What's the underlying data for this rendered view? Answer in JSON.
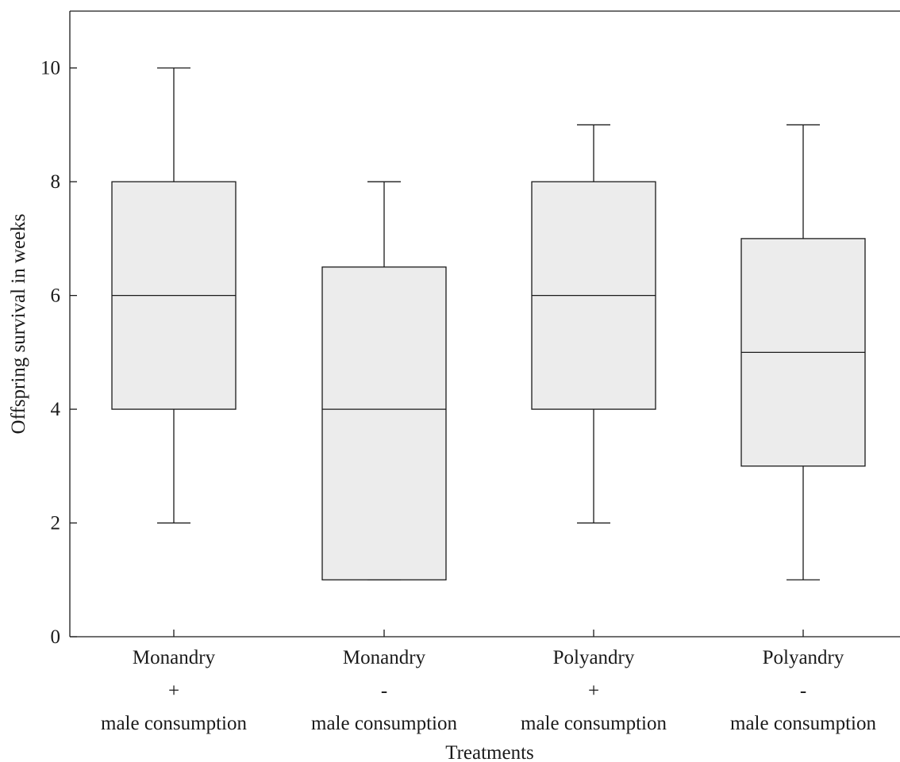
{
  "chart_data": {
    "type": "box",
    "xlabel": "Treatments",
    "ylabel": "Offspring survival in weeks",
    "ylim": [
      0,
      11
    ],
    "yticks": [
      0,
      2,
      4,
      6,
      8,
      10
    ],
    "grid": false,
    "box_color": "#ececec",
    "line_color": "#1a1a1a",
    "categories": [
      {
        "label_lines": [
          "Monandry",
          "+",
          "male consumption"
        ],
        "min": 2,
        "q1": 4,
        "median": 6,
        "q3": 8,
        "max": 10
      },
      {
        "label_lines": [
          "Monandry",
          "-",
          "male consumption"
        ],
        "min": 1,
        "q1": 1,
        "median": 4,
        "q3": 6.5,
        "max": 8
      },
      {
        "label_lines": [
          "Polyandry",
          "+",
          "male consumption"
        ],
        "min": 2,
        "q1": 4,
        "median": 6,
        "q3": 8,
        "max": 9
      },
      {
        "label_lines": [
          "Polyandry",
          "-",
          "male consumption"
        ],
        "min": 1,
        "q1": 3,
        "median": 5,
        "q3": 7,
        "max": 9
      }
    ]
  }
}
